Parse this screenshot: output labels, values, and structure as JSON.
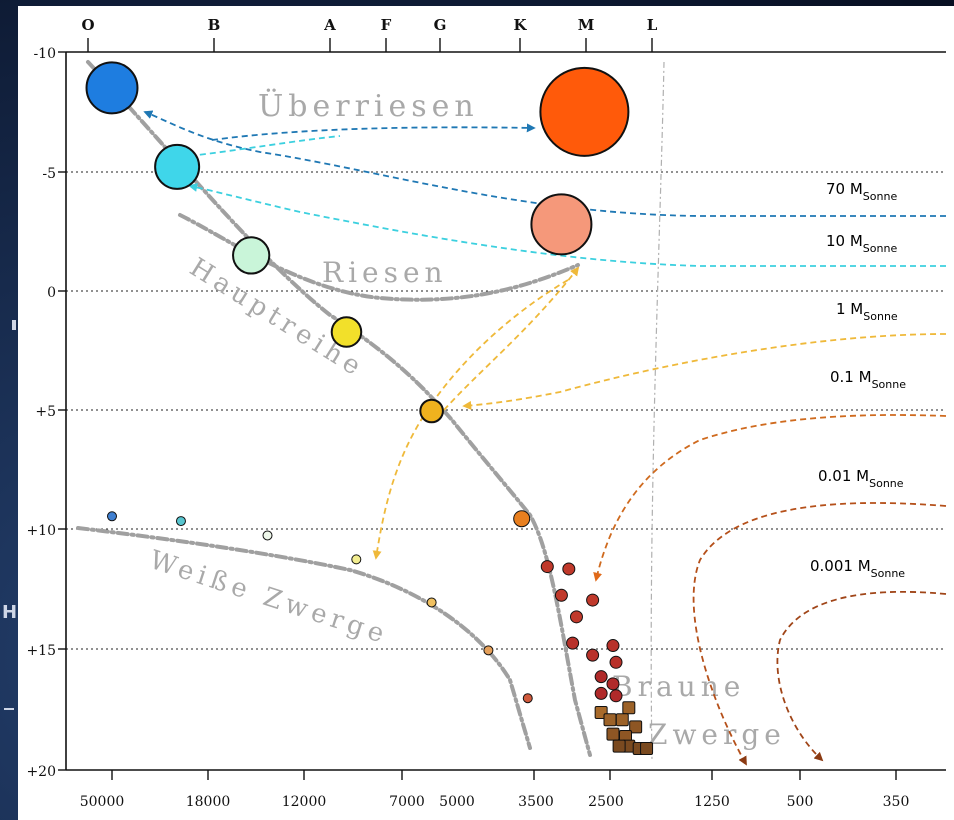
{
  "chart_data": {
    "type": "scatter",
    "title": "",
    "x_tick_labels": [
      "50000",
      "18000",
      "12000",
      "7000",
      "5000",
      "3500",
      "2500",
      "1250",
      "500",
      "350"
    ],
    "spectral_classes": [
      "O",
      "B",
      "A",
      "F",
      "G",
      "K",
      "M",
      "L"
    ],
    "y_tick_labels": [
      "-10",
      "-5",
      "0",
      "+5",
      "+10",
      "+15",
      "+20"
    ],
    "y_range": [
      -10,
      20
    ],
    "grid": "horizontal dotted at -5, 0, +5, +10, +15",
    "regions": {
      "supergiants": "Überriesen",
      "giants": "Riesen",
      "main_sequence": "Hauptreihe",
      "white_dwarfs": "Weiße Zwerge",
      "brown_dwarfs_1": "Braune",
      "brown_dwarfs_2": "Zwerge"
    },
    "mass_tracks": [
      {
        "mass": "70 M",
        "sub": "Sonne",
        "color": "#2b7fb0"
      },
      {
        "mass": "10 M",
        "sub": "Sonne",
        "color": "#3cc7d6"
      },
      {
        "mass": "1 M",
        "sub": "Sonne",
        "color": "#efb93a"
      },
      {
        "mass": "0.1 M",
        "sub": "Sonne",
        "color": "#cf6a1e"
      },
      {
        "mass": "0.01 M",
        "sub": "Sonne",
        "color": "#b5501a"
      },
      {
        "mass": "0.001 M",
        "sub": "Sonne",
        "color": "#a04518"
      }
    ],
    "stars": [
      {
        "group": "main sequence",
        "temperature_K": 50000,
        "abs_magnitude": -8.5,
        "color": "#1e7de0"
      },
      {
        "group": "main sequence",
        "temperature_K": 25000,
        "abs_magnitude": -5.2,
        "color": "#3fd6ea"
      },
      {
        "group": "main sequence",
        "temperature_K": 15000,
        "abs_magnitude": -1.5,
        "color": "#c9f5d9"
      },
      {
        "group": "main sequence",
        "temperature_K": 9500,
        "abs_magnitude": 1.7,
        "color": "#f2e02a"
      },
      {
        "group": "main sequence",
        "temperature_K": 5800,
        "abs_magnitude": 5,
        "color": "#f0b21e"
      },
      {
        "group": "main sequence",
        "temperature_K": 3700,
        "abs_magnitude": 9.5,
        "color": "#e87f1f"
      },
      {
        "group": "supergiant",
        "temperature_K": 2800,
        "abs_magnitude": -7.5,
        "color": "#ff5a0a"
      },
      {
        "group": "giant",
        "temperature_K": 3100,
        "abs_magnitude": -2.8,
        "color": "#f5987a"
      },
      {
        "group": "white dwarf",
        "temperature_K": 50000,
        "abs_magnitude": 9.4,
        "color": "#3f7fd0"
      },
      {
        "group": "white dwarf",
        "temperature_K": 24000,
        "abs_magnitude": 9.6,
        "color": "#58c5cf"
      },
      {
        "group": "white dwarf",
        "temperature_K": 14000,
        "abs_magnitude": 10.2,
        "color": "#eef7ea"
      },
      {
        "group": "white dwarf",
        "temperature_K": 9000,
        "abs_magnitude": 11.2,
        "color": "#f3ee90"
      },
      {
        "group": "white dwarf",
        "temperature_K": 5800,
        "abs_magnitude": 13,
        "color": "#f0c060"
      },
      {
        "group": "white dwarf",
        "temperature_K": 4300,
        "abs_magnitude": 15,
        "color": "#e5a05a"
      },
      {
        "group": "white dwarf",
        "temperature_K": 3600,
        "abs_magnitude": 17,
        "color": "#d05a3c"
      },
      {
        "group": "red dwarf",
        "temperature_K": 3300,
        "abs_magnitude": 11.5,
        "color": "#c0392b"
      },
      {
        "group": "red dwarf",
        "temperature_K": 3000,
        "abs_magnitude": 11.6,
        "color": "#c0392b"
      },
      {
        "group": "red dwarf",
        "temperature_K": 3100,
        "abs_magnitude": 12.7,
        "color": "#c0392b"
      },
      {
        "group": "red dwarf",
        "temperature_K": 2700,
        "abs_magnitude": 12.9,
        "color": "#c0392b"
      },
      {
        "group": "red dwarf",
        "temperature_K": 2900,
        "abs_magnitude": 13.6,
        "color": "#c0392b"
      },
      {
        "group": "red dwarf",
        "temperature_K": 2950,
        "abs_magnitude": 14.7,
        "color": "#b8312a"
      },
      {
        "group": "red dwarf",
        "temperature_K": 2450,
        "abs_magnitude": 14.8,
        "color": "#b8312a"
      },
      {
        "group": "red dwarf",
        "temperature_K": 2700,
        "abs_magnitude": 15.2,
        "color": "#b8312a"
      },
      {
        "group": "red dwarf",
        "temperature_K": 2400,
        "abs_magnitude": 15.5,
        "color": "#b8312a"
      },
      {
        "group": "red dwarf",
        "temperature_K": 2600,
        "abs_magnitude": 16.1,
        "color": "#b02a2a"
      },
      {
        "group": "red dwarf",
        "temperature_K": 2450,
        "abs_magnitude": 16.4,
        "color": "#b02a2a"
      },
      {
        "group": "red dwarf",
        "temperature_K": 2600,
        "abs_magnitude": 16.8,
        "color": "#b02a2a"
      },
      {
        "group": "red dwarf",
        "temperature_K": 2400,
        "abs_magnitude": 16.9,
        "color": "#b02a2a"
      },
      {
        "group": "brown dwarf",
        "temperature_K": 2600,
        "abs_magnitude": 17.6,
        "color": "#a86a2a"
      },
      {
        "group": "brown dwarf",
        "temperature_K": 2200,
        "abs_magnitude": 17.4,
        "color": "#9c6228"
      },
      {
        "group": "brown dwarf",
        "temperature_K": 2500,
        "abs_magnitude": 17.9,
        "color": "#9c6228"
      },
      {
        "group": "brown dwarf",
        "temperature_K": 2300,
        "abs_magnitude": 17.9,
        "color": "#9c6228"
      },
      {
        "group": "brown dwarf",
        "temperature_K": 2100,
        "abs_magnitude": 18.2,
        "color": "#8e5624"
      },
      {
        "group": "brown dwarf",
        "temperature_K": 2450,
        "abs_magnitude": 18.5,
        "color": "#8e5624"
      },
      {
        "group": "brown dwarf",
        "temperature_K": 2250,
        "abs_magnitude": 18.6,
        "color": "#8e5624"
      },
      {
        "group": "brown dwarf",
        "temperature_K": 2200,
        "abs_magnitude": 19.0,
        "color": "#7a4a20"
      },
      {
        "group": "brown dwarf",
        "temperature_K": 2050,
        "abs_magnitude": 19.1,
        "color": "#7a4a20"
      },
      {
        "group": "brown dwarf",
        "temperature_K": 2350,
        "abs_magnitude": 19.0,
        "color": "#7a4a20"
      },
      {
        "group": "brown dwarf",
        "temperature_K": 1950,
        "abs_magnitude": 19.1,
        "color": "#7a4a20"
      }
    ]
  },
  "background": {
    "letter_h": "H"
  }
}
